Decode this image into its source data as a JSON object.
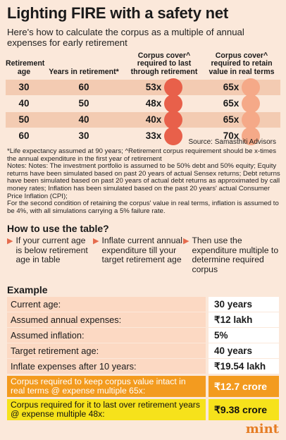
{
  "title": "Lighting FIRE with a safety net",
  "subtitle": "Here's how to calculate the corpus as a multiple of annual expenses for early retirement",
  "table": {
    "headers": [
      "Retirement age",
      "Years in retirement*",
      "Corpus cover^ required to last through retirement",
      "Corpus cover^ required to retain value in real terms"
    ],
    "rows": [
      {
        "age": "30",
        "years": "60",
        "last": "53x",
        "real": "65x"
      },
      {
        "age": "40",
        "years": "50",
        "last": "48x",
        "real": "65x"
      },
      {
        "age": "50",
        "years": "40",
        "last": "40x",
        "real": "65x"
      },
      {
        "age": "60",
        "years": "30",
        "last": "33x",
        "real": "70x"
      }
    ],
    "colors": {
      "last_bubble": "#e8604a",
      "real_bubble": "#f5a988"
    }
  },
  "source": "Source: Samasthiti Advisors",
  "notes": [
    "*Life expectancy assumed at 90 years; ^Retirement corpus requirement should be x-times the annual expenditure in the first year of retirement",
    "Notes: Notes: The investment portfolio is assumed to be 50% debt and 50% equity; Equity returns have been simulated based on past 20 years of actual Sensex returns; Debt returns have been simulated based on past 20 years of actual debt returns as approximated by call money rates; Inflation has been simulated based on the past 20 years' actual Consumer Price Inflation (CPI);",
    "For the second condition of retaining the corpus' value in real terms, inflation is assumed to be 4%, with all simulations carrying a 5% failure rate."
  ],
  "howto": {
    "heading": "How to use the table?",
    "steps": [
      "If your current age is below retirement age in table",
      "Inflate current annual expenditure till your target retirement age",
      "Then use the expenditure multiple to determine required corpus"
    ]
  },
  "example": {
    "heading": "Example",
    "rows": [
      {
        "label": "Current age:",
        "value": "30 years"
      },
      {
        "label": "Assumed annual expenses:",
        "value": "₹12 lakh"
      },
      {
        "label": "Assumed inflation:",
        "value": "5%"
      },
      {
        "label": "Target retirement age:",
        "value": "40 years"
      },
      {
        "label": "Inflate expenses after 10 years:",
        "value": "₹19.54 lakh"
      }
    ],
    "highlight1": {
      "label": "Corpus required to keep corpus value intact in real terms @ expense multiple 65x:",
      "value": "₹12.7 crore",
      "color": "#f39b1f"
    },
    "highlight2": {
      "label": "Corpus required for it to last over retirement years @ expense multiple 48x:",
      "value": "₹9.38 crore",
      "color": "#f6e21b"
    }
  },
  "logo": "mint"
}
